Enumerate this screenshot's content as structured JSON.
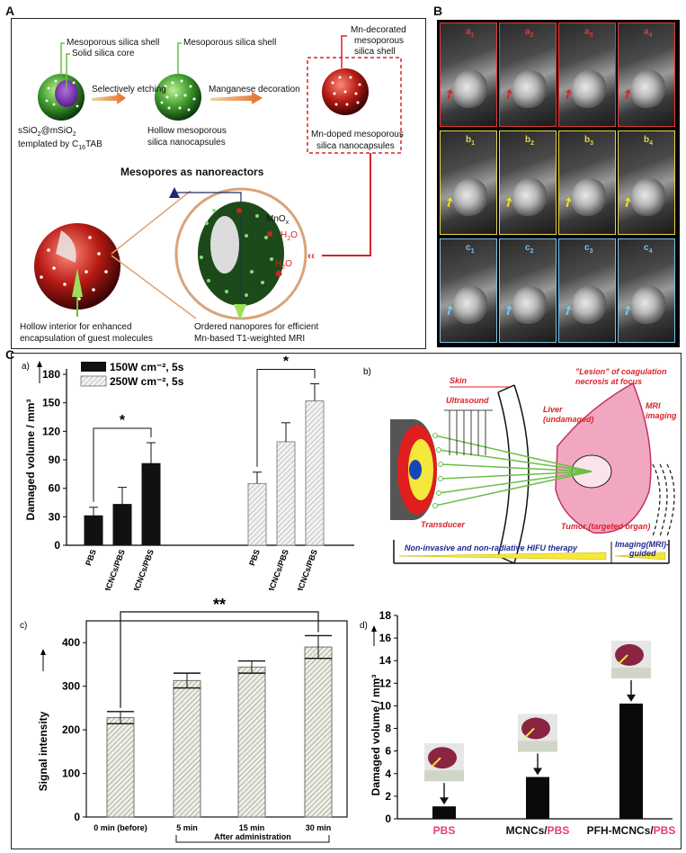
{
  "panel_A": {
    "letter": "A",
    "mesoporous_shell_1": "Mesoporous silica shell",
    "solid_core": "Solid silica core",
    "mesoporous_shell_2": "Mesoporous silica shell",
    "mn_decorated_l1": "Mn-decorated",
    "mn_decorated_l2": "mesoporous",
    "mn_decorated_l3": "silica shell",
    "step1": "Selectively etching",
    "step2": "Manganese decoration",
    "left_caption_l1": "sSiO",
    "left_caption_sub1": "2",
    "left_caption_mid": "@mSiO",
    "left_caption_sub2": "2",
    "left_caption_l2": "templated by C",
    "left_caption_sub3": "16",
    "left_caption_l2b": "TAB",
    "hollow_l1": "Hollow mesoporous",
    "hollow_l2": "silica nanocapsules",
    "mndoped_l1": "Mn-doped mesoporous",
    "mndoped_l2": "silica nanocapsules",
    "nanoreactors": "Mesopores as nanoreactors",
    "mnox": "MnO",
    "mnox_sub": "x",
    "h2o": "H",
    "h2o_sub": "2",
    "h2o_end": "O",
    "hollow_interior_l1": "Hollow interior for enhanced",
    "hollow_interior_l2": "encapsulation of guest molecules",
    "ordered_l1": "Ordered nanopores for efficient",
    "ordered_l2": "Mn-based T1-weighted MRI"
  },
  "panel_B": {
    "letter": "B",
    "rows": [
      {
        "labels": [
          "a1",
          "a2",
          "a3",
          "a4"
        ],
        "color": "#e03a3a",
        "arrow_color": "#e02020"
      },
      {
        "labels": [
          "b1",
          "b2",
          "b3",
          "b4"
        ],
        "color": "#e8d44a",
        "arrow_color": "#f0e020"
      },
      {
        "labels": [
          "c1",
          "c2",
          "c3",
          "c4"
        ],
        "color": "#7cc0e8",
        "arrow_color": "#7cc8f0"
      }
    ]
  },
  "panel_C": {
    "letter": "C"
  },
  "chart_data": [
    {
      "id": "a",
      "type": "bar",
      "panel_label": "a)",
      "ylabel": "Damaged volume / mm³",
      "ylim": [
        0,
        180
      ],
      "yticks": [
        0,
        30,
        60,
        90,
        120,
        150,
        180
      ],
      "legend": [
        "150W cm⁻², 5s",
        "250W cm⁻², 5s"
      ],
      "categories": [
        "PBS",
        "MCNCs/PBS",
        "PFH-MCNCs/PBS"
      ],
      "series": [
        {
          "name": "150W cm⁻², 5s",
          "values": [
            31,
            43,
            86
          ],
          "errors": [
            9,
            18,
            22
          ]
        },
        {
          "name": "250W cm⁻², 5s",
          "values": [
            65,
            109,
            152
          ],
          "errors": [
            12,
            20,
            18
          ]
        }
      ],
      "significance": [
        "*",
        "*"
      ]
    },
    {
      "id": "b",
      "type": "diagram",
      "panel_label": "b)",
      "labels": {
        "skin": "Skin",
        "ultrasound": "Ultrasound",
        "lesion_l1": "\"Lesion\" of coagulation",
        "lesion_l2": "necrosis at focus",
        "liver_l1": "Liver",
        "liver_l2": "(undamaged)",
        "mri_l1": "MRI",
        "mri_l2": "imaging",
        "transducer": "Transducer",
        "tumor": "Tumor (targeted organ)",
        "hifu": "Non-invasive and non-radiative HIFU therapy",
        "imaging_l1": "Imaging(MRI)-",
        "imaging_l2": "guided"
      }
    },
    {
      "id": "c",
      "type": "bar",
      "panel_label": "c)",
      "ylabel": "Signal intensity",
      "ylim": [
        0,
        450
      ],
      "yticks": [
        0,
        100,
        200,
        300,
        400
      ],
      "categories": [
        "0 min (before)",
        "5 min",
        "15 min",
        "30 min"
      ],
      "values": [
        228,
        313,
        344,
        390
      ],
      "errors": [
        14,
        17,
        14,
        26
      ],
      "significance": "**",
      "group_label": "After administration"
    },
    {
      "id": "d",
      "type": "bar",
      "panel_label": "d)",
      "ylabel": "Damaged volume / mm³",
      "ylim": [
        0,
        18
      ],
      "yticks": [
        0,
        2,
        4,
        6,
        8,
        10,
        12,
        14,
        16,
        18
      ],
      "categories": [
        "PBS",
        "MCNCs/PBS",
        "PFH-MCNCs/PBS"
      ],
      "category_parts": [
        [
          "",
          "PBS"
        ],
        [
          "MCNCs/",
          "PBS"
        ],
        [
          "PFH-MCNCs/",
          "PBS"
        ]
      ],
      "values": [
        1.1,
        3.7,
        10.2
      ]
    }
  ],
  "colors": {
    "red": "#d9232a",
    "green": "#6abf45",
    "navy": "#1f2a6e",
    "ochre": "#d9a37a",
    "pink": "#e4406e"
  }
}
